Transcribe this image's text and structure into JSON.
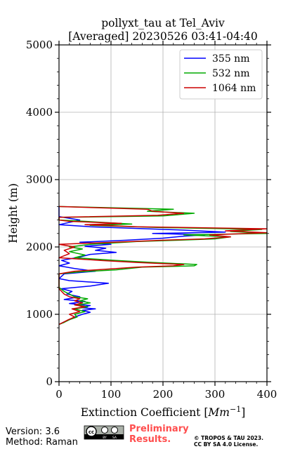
{
  "chart_data": {
    "type": "line",
    "title": "pollyxt_tau at Tel_Aviv",
    "subtitle": "[Averaged] 20230526 03:41-04:40",
    "xlabel": "Extinction Coefficient",
    "xlabel_unit_base": "Mm",
    "xlabel_unit_exp": "−1",
    "ylabel": "Height (m)",
    "xlim": [
      0,
      400
    ],
    "ylim": [
      0,
      5000
    ],
    "x_ticks": [
      0,
      100,
      200,
      300,
      400
    ],
    "y_ticks": [
      0,
      1000,
      2000,
      3000,
      4000,
      5000
    ],
    "grid": true,
    "legend_position": "top-right",
    "series": [
      {
        "name": "355 nm",
        "color": "#0000ff",
        "points": [
          [
            0,
            850
          ],
          [
            8,
            880
          ],
          [
            20,
            920
          ],
          [
            30,
            960
          ],
          [
            45,
            1000
          ],
          [
            60,
            1030
          ],
          [
            45,
            1060
          ],
          [
            70,
            1080
          ],
          [
            40,
            1100
          ],
          [
            60,
            1130
          ],
          [
            20,
            1160
          ],
          [
            50,
            1190
          ],
          [
            10,
            1220
          ],
          [
            40,
            1260
          ],
          [
            15,
            1300
          ],
          [
            25,
            1340
          ],
          [
            5,
            1380
          ],
          [
            60,
            1420
          ],
          [
            95,
            1460
          ],
          [
            20,
            1500
          ],
          [
            0,
            1530
          ],
          [
            10,
            1600
          ],
          [
            70,
            1640
          ],
          [
            30,
            1680
          ],
          [
            0,
            1720
          ],
          [
            20,
            1760
          ],
          [
            5,
            1800
          ],
          [
            40,
            1850
          ],
          [
            60,
            1890
          ],
          [
            110,
            1920
          ],
          [
            70,
            1950
          ],
          [
            90,
            1980
          ],
          [
            50,
            2010
          ],
          [
            100,
            2040
          ],
          [
            40,
            2070
          ],
          [
            130,
            2100
          ],
          [
            200,
            2130
          ],
          [
            240,
            2160
          ],
          [
            280,
            2180
          ],
          [
            180,
            2200
          ],
          [
            320,
            2220
          ],
          [
            240,
            2250
          ],
          [
            60,
            2300
          ],
          [
            0,
            2330
          ],
          [
            40,
            2400
          ],
          [
            0,
            2450
          ],
          [
            0,
            2600
          ]
        ]
      },
      {
        "name": "532 nm",
        "color": "#00aa00",
        "points": [
          [
            0,
            850
          ],
          [
            10,
            880
          ],
          [
            20,
            920
          ],
          [
            35,
            960
          ],
          [
            30,
            1000
          ],
          [
            50,
            1040
          ],
          [
            30,
            1080
          ],
          [
            55,
            1110
          ],
          [
            35,
            1140
          ],
          [
            60,
            1170
          ],
          [
            40,
            1200
          ],
          [
            55,
            1230
          ],
          [
            30,
            1260
          ],
          [
            20,
            1300
          ],
          [
            10,
            1340
          ],
          [
            0,
            1400
          ],
          [
            0,
            1600
          ],
          [
            40,
            1630
          ],
          [
            110,
            1660
          ],
          [
            160,
            1700
          ],
          [
            260,
            1720
          ],
          [
            265,
            1740
          ],
          [
            180,
            1770
          ],
          [
            110,
            1800
          ],
          [
            30,
            1840
          ],
          [
            50,
            1880
          ],
          [
            20,
            1930
          ],
          [
            45,
            1970
          ],
          [
            20,
            2000
          ],
          [
            60,
            2040
          ],
          [
            150,
            2080
          ],
          [
            230,
            2100
          ],
          [
            300,
            2120
          ],
          [
            330,
            2150
          ],
          [
            240,
            2180
          ],
          [
            400,
            2200
          ],
          [
            330,
            2230
          ],
          [
            390,
            2260
          ],
          [
            190,
            2290
          ],
          [
            60,
            2320
          ],
          [
            140,
            2340
          ],
          [
            50,
            2380
          ],
          [
            0,
            2400
          ],
          [
            0,
            2440
          ],
          [
            200,
            2460
          ],
          [
            260,
            2500
          ],
          [
            170,
            2530
          ],
          [
            220,
            2560
          ],
          [
            0,
            2600
          ]
        ]
      },
      {
        "name": "1064 nm",
        "color": "#cc0000",
        "points": [
          [
            0,
            850
          ],
          [
            8,
            880
          ],
          [
            18,
            920
          ],
          [
            30,
            960
          ],
          [
            20,
            1000
          ],
          [
            40,
            1040
          ],
          [
            25,
            1080
          ],
          [
            50,
            1110
          ],
          [
            30,
            1140
          ],
          [
            45,
            1170
          ],
          [
            30,
            1200
          ],
          [
            40,
            1230
          ],
          [
            20,
            1260
          ],
          [
            10,
            1300
          ],
          [
            0,
            1380
          ],
          [
            0,
            1600
          ],
          [
            30,
            1640
          ],
          [
            90,
            1670
          ],
          [
            150,
            1700
          ],
          [
            220,
            1720
          ],
          [
            240,
            1740
          ],
          [
            150,
            1770
          ],
          [
            80,
            1800
          ],
          [
            0,
            1840
          ],
          [
            20,
            1900
          ],
          [
            10,
            1950
          ],
          [
            30,
            2000
          ],
          [
            0,
            2040
          ],
          [
            140,
            2080
          ],
          [
            200,
            2100
          ],
          [
            280,
            2120
          ],
          [
            330,
            2150
          ],
          [
            290,
            2180
          ],
          [
            400,
            2210
          ],
          [
            320,
            2240
          ],
          [
            400,
            2270
          ],
          [
            150,
            2300
          ],
          [
            50,
            2330
          ],
          [
            120,
            2350
          ],
          [
            20,
            2380
          ],
          [
            0,
            2400
          ],
          [
            0,
            2440
          ],
          [
            190,
            2470
          ],
          [
            240,
            2500
          ],
          [
            180,
            2530
          ],
          [
            170,
            2560
          ],
          [
            0,
            2600
          ]
        ]
      }
    ]
  },
  "footer": {
    "version": "Version: 3.6",
    "method": "Method: Raman",
    "prelim_line1": "Preliminary",
    "prelim_line2": "Results.",
    "license_line1": "© TROPOS & TAU 2023.",
    "license_line2": "CC BY SA 4.0 License."
  },
  "cc_badge": {
    "text": "cc",
    "by": "BY",
    "sa": "SA"
  }
}
